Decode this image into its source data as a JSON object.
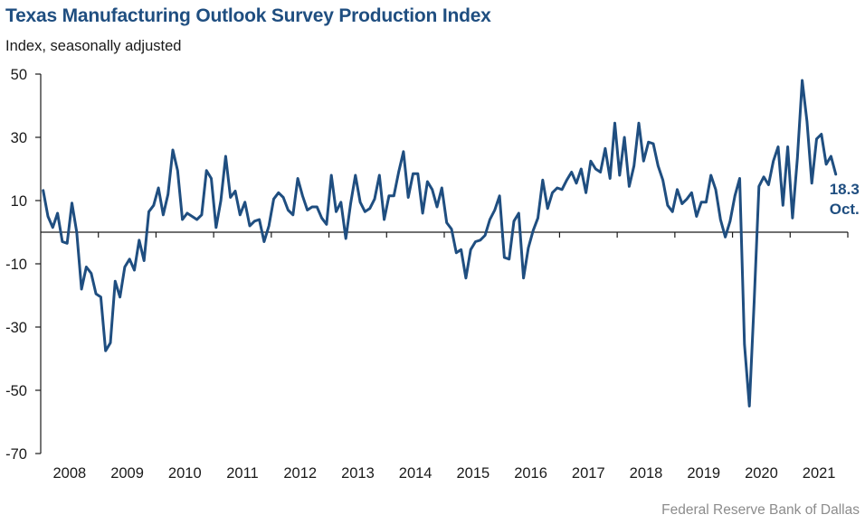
{
  "header": {
    "title": "Texas Manufacturing Outlook Survey Production Index",
    "subtitle": "Index, seasonally adjusted"
  },
  "footer": {
    "source": "Federal Reserve Bank of Dallas"
  },
  "colors": {
    "series": "#1f4e80",
    "title": "#1f4e80",
    "axis": "#1a1a1a",
    "source": "#8c8c8c"
  },
  "chart_data": {
    "type": "line",
    "title": "Texas Manufacturing Outlook Survey Production Index",
    "subtitle": "Index, seasonally adjusted",
    "xlabel": "",
    "ylabel": "Index, seasonally adjusted",
    "ylim": [
      -70,
      50
    ],
    "yticks": [
      50,
      30,
      10,
      -10,
      -30,
      -50,
      -70
    ],
    "ytick_labels": [
      "50",
      "30",
      "10",
      "-10",
      "-30",
      "-50",
      "-70"
    ],
    "x_start": "2008-01",
    "frequency": "monthly",
    "xtick_labels": [
      "2008",
      "2009",
      "2010",
      "2011",
      "2012",
      "2013",
      "2014",
      "2015",
      "2016",
      "2017",
      "2018",
      "2019",
      "2020",
      "2021"
    ],
    "zero_line": true,
    "grid": false,
    "legend": "none",
    "annotation": {
      "value": "18.3",
      "label": "Oct.",
      "position": "right-of-last-point"
    },
    "series": [
      {
        "name": "Production Index",
        "values": [
          13.2,
          5.0,
          1.5,
          6.0,
          -3.0,
          -3.5,
          9.2,
          0.0,
          -18.0,
          -11.0,
          -13.0,
          -19.5,
          -20.5,
          -37.5,
          -35.0,
          -15.5,
          -20.5,
          -11.0,
          -8.5,
          -12.0,
          -2.5,
          -9.0,
          6.5,
          8.5,
          14.0,
          5.5,
          12.0,
          26.0,
          19.5,
          4.0,
          6.0,
          5.0,
          4.0,
          5.5,
          19.5,
          17.0,
          1.5,
          10.0,
          24.0,
          11.0,
          13.0,
          5.5,
          9.5,
          2.0,
          3.5,
          4.0,
          -3.0,
          2.0,
          10.5,
          12.5,
          11.0,
          7.0,
          5.5,
          17.0,
          11.5,
          7.0,
          8.0,
          8.0,
          4.5,
          2.5,
          18.0,
          6.5,
          9.5,
          -2.0,
          9.0,
          18.0,
          9.5,
          6.5,
          7.5,
          10.5,
          18.0,
          4.0,
          11.5,
          11.5,
          19.0,
          25.5,
          11.0,
          18.5,
          18.5,
          6.0,
          16.0,
          13.5,
          8.0,
          14.0,
          3.0,
          1.0,
          -6.5,
          -5.5,
          -14.5,
          -5.5,
          -3.0,
          -2.5,
          -1.0,
          4.0,
          7.0,
          11.5,
          -8.0,
          -8.5,
          3.5,
          6.0,
          -14.5,
          -5.0,
          0.5,
          4.5,
          16.5,
          7.5,
          12.5,
          14.0,
          13.5,
          16.5,
          19.0,
          15.5,
          20.0,
          12.5,
          22.5,
          20.0,
          19.0,
          26.5,
          17.0,
          34.5,
          18.0,
          30.0,
          14.5,
          21.0,
          34.5,
          22.5,
          28.5,
          28.0,
          21.0,
          16.5,
          8.5,
          6.5,
          13.5,
          9.0,
          10.5,
          12.5,
          5.0,
          9.5,
          9.5,
          18.0,
          13.5,
          4.0,
          -1.5,
          3.5,
          11.5,
          17.0,
          -35.5,
          -55.0,
          -22.0,
          14.5,
          17.5,
          15.0,
          22.5,
          27.0,
          8.5,
          27.0,
          4.5,
          23.5,
          48.0,
          35.0,
          15.5,
          29.5,
          31.0,
          21.5,
          24.0,
          18.3
        ]
      }
    ]
  }
}
